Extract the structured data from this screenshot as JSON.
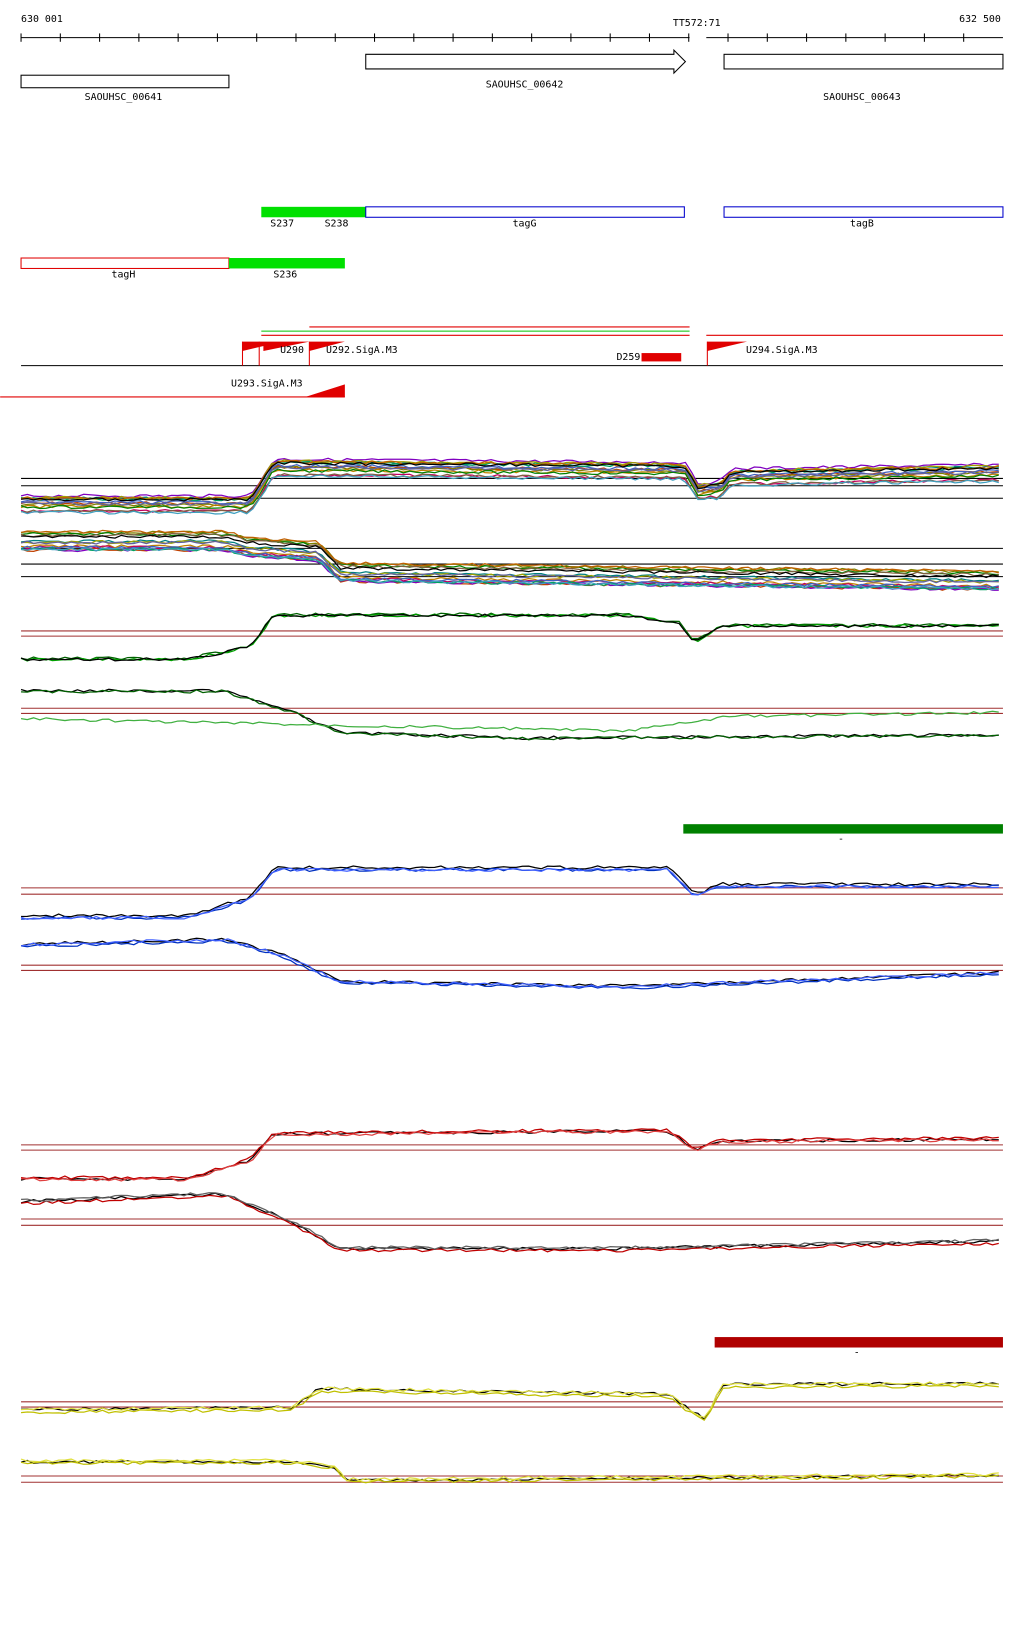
{
  "ruler": {
    "start": "630 001",
    "marker": "TT572:71",
    "end": "632 500"
  },
  "genes": [
    {
      "label": "SAOUHSC_00641"
    },
    {
      "label": "SAOUHSC_00642"
    },
    {
      "label": "SAOUHSC_00643"
    }
  ],
  "features": {
    "row1": [
      "S237",
      "S238",
      "tagG",
      "tagB"
    ],
    "row2": [
      "tagH",
      "S236"
    ]
  },
  "promoters": [
    "U290",
    "U292.SigA.M3",
    "D259",
    "U294.SigA.M3",
    "U293.SigA.M3"
  ],
  "condition_marks": [
    "-",
    "-"
  ]
}
